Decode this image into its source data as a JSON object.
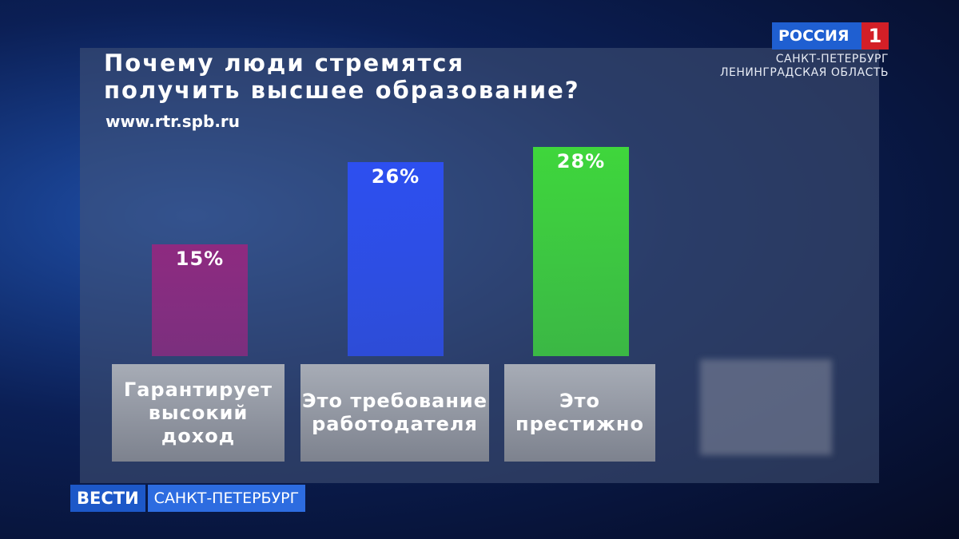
{
  "chart_data": {
    "type": "bar",
    "title": "Почему люди стремятся\nполучить высшее образование?",
    "subtitle": "www.rtr.spb.ru",
    "categories": [
      "Гарантирует высокий доход",
      "Это требование работодателя",
      "Это престижно"
    ],
    "values": [
      15,
      26,
      28
    ],
    "value_labels": [
      "15%",
      "26%",
      "28%"
    ],
    "colors": [
      "#8e2a80",
      "#2d4ff0",
      "#3fd63c"
    ]
  },
  "logo": {
    "channel": "РОССИЯ",
    "number": "1",
    "region": "САНКТ-ПЕТЕРБУРГ",
    "region_2": "ЛЕНИНГРАДСКАЯ ОБЛАСТЬ"
  },
  "lower_third": {
    "program": "ВЕСТИ",
    "city": "САНКТ-ПЕТЕРБУРГ"
  }
}
